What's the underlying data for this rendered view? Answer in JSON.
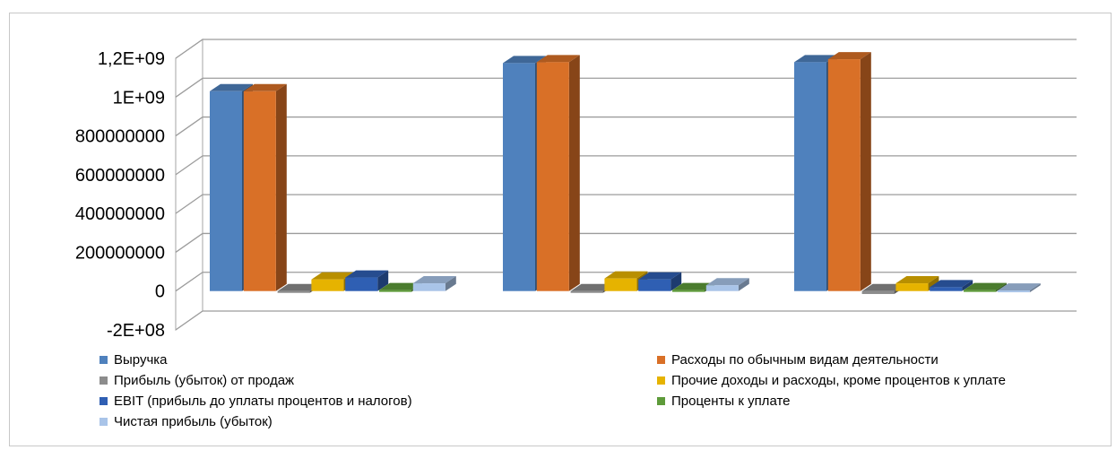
{
  "chart_data": {
    "type": "bar",
    "title": "",
    "xlabel": "",
    "ylabel": "",
    "categories": [
      "",
      "",
      ""
    ],
    "ylim": [
      -200000000,
      1200000000
    ],
    "yticks": [
      -200000000,
      0,
      200000000,
      400000000,
      600000000,
      800000000,
      1000000000,
      1200000000
    ],
    "ytick_labels": [
      "-2E+08",
      "0",
      "200000000",
      "400000000",
      "600000000",
      "800000000",
      "1E+09",
      "1,2E+09"
    ],
    "grid": true,
    "legend_position": "bottom",
    "series": [
      {
        "name": "Выручка",
        "color": "#4f81bd",
        "values": [
          1030000000,
          1175000000,
          1180000000
        ]
      },
      {
        "name": "Расходы по обычным видам деятельности",
        "color": "#d97027",
        "values": [
          1030000000,
          1180000000,
          1195000000
        ]
      },
      {
        "name": "Прибыль (убыток) от продаж",
        "color": "#8c8c8c",
        "values": [
          -5000000,
          -5000000,
          -15000000
        ]
      },
      {
        "name": "Прочие доходы и расходы, кроме процентов к уплате",
        "color": "#e6b300",
        "values": [
          60000000,
          65000000,
          40000000
        ]
      },
      {
        "name": "EBIT (прибыль до уплаты процентов и налогов)",
        "color": "#2f5fb3",
        "values": [
          70000000,
          60000000,
          20000000
        ]
      },
      {
        "name": "Проценты к уплате",
        "color": "#5e9b3a",
        "values": [
          5000000,
          5000000,
          5000000
        ]
      },
      {
        "name": "Чистая прибыль (убыток)",
        "color": "#a9c4e8",
        "values": [
          40000000,
          30000000,
          3000000
        ]
      }
    ]
  }
}
